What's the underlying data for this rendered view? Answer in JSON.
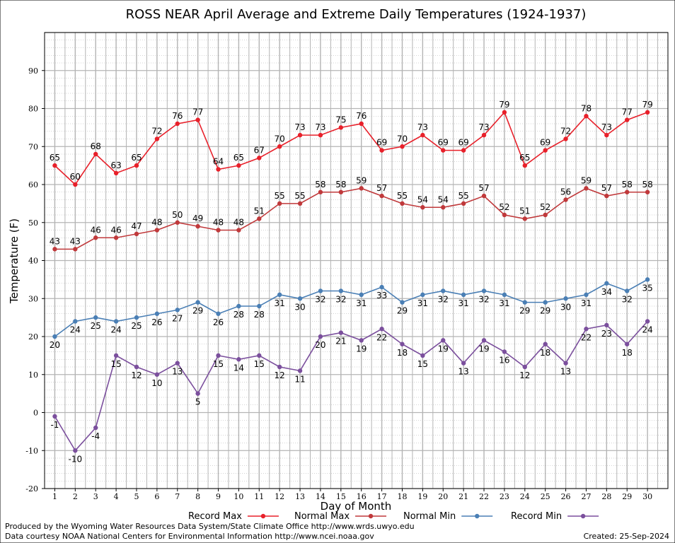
{
  "chart_data": {
    "type": "line",
    "title": "ROSS NEAR April Average and Extreme Daily Temperatures (1924-1937)",
    "xlabel": "Day of Month",
    "ylabel": "Temperature (F)",
    "ylim": [
      -20,
      100
    ],
    "yticks": [
      -20,
      -10,
      0,
      10,
      20,
      30,
      40,
      50,
      60,
      70,
      80,
      90
    ],
    "x": [
      1,
      2,
      3,
      4,
      5,
      6,
      7,
      8,
      9,
      10,
      11,
      12,
      13,
      14,
      15,
      16,
      17,
      18,
      19,
      20,
      21,
      22,
      23,
      24,
      25,
      26,
      27,
      28,
      29,
      30
    ],
    "grid": true,
    "legend_position": "bottom",
    "series": [
      {
        "name": "Record Max",
        "color": "#e8202a",
        "label_pos": "above",
        "values": [
          65,
          60,
          68,
          63,
          65,
          72,
          76,
          77,
          64,
          65,
          67,
          70,
          73,
          73,
          75,
          76,
          69,
          70,
          73,
          69,
          69,
          73,
          79,
          65,
          69,
          72,
          78,
          73,
          77,
          79
        ]
      },
      {
        "name": "Normal Max",
        "color": "#c0393b",
        "label_pos": "above",
        "values": [
          43,
          43,
          46,
          46,
          47,
          48,
          50,
          49,
          48,
          48,
          51,
          55,
          55,
          58,
          58,
          59,
          57,
          55,
          54,
          54,
          55,
          57,
          52,
          51,
          52,
          56,
          59,
          57,
          58,
          58
        ]
      },
      {
        "name": "Normal Min",
        "color": "#4a7fb5",
        "label_pos": "below",
        "values": [
          20,
          24,
          25,
          24,
          25,
          26,
          27,
          29,
          26,
          28,
          28,
          31,
          30,
          32,
          32,
          31,
          33,
          29,
          31,
          32,
          31,
          32,
          31,
          29,
          29,
          30,
          31,
          34,
          32,
          35
        ]
      },
      {
        "name": "Record Min",
        "color": "#7b4f9d",
        "label_pos": "below",
        "values": [
          -1,
          -10,
          -4,
          15,
          12,
          10,
          13,
          5,
          15,
          14,
          15,
          12,
          11,
          20,
          21,
          19,
          22,
          18,
          15,
          19,
          13,
          19,
          16,
          12,
          18,
          13,
          22,
          23,
          18,
          24
        ]
      }
    ]
  },
  "footer": {
    "produced_by": "Produced by the Wyoming Water Resources Data System/State Climate Office http://www.wrds.uwyo.edu",
    "data_courtesy": "Data courtesy NOAA National Centers for Environmental Information http://www.ncei.noaa.gov",
    "created": "Created:  25-Sep-2024"
  }
}
